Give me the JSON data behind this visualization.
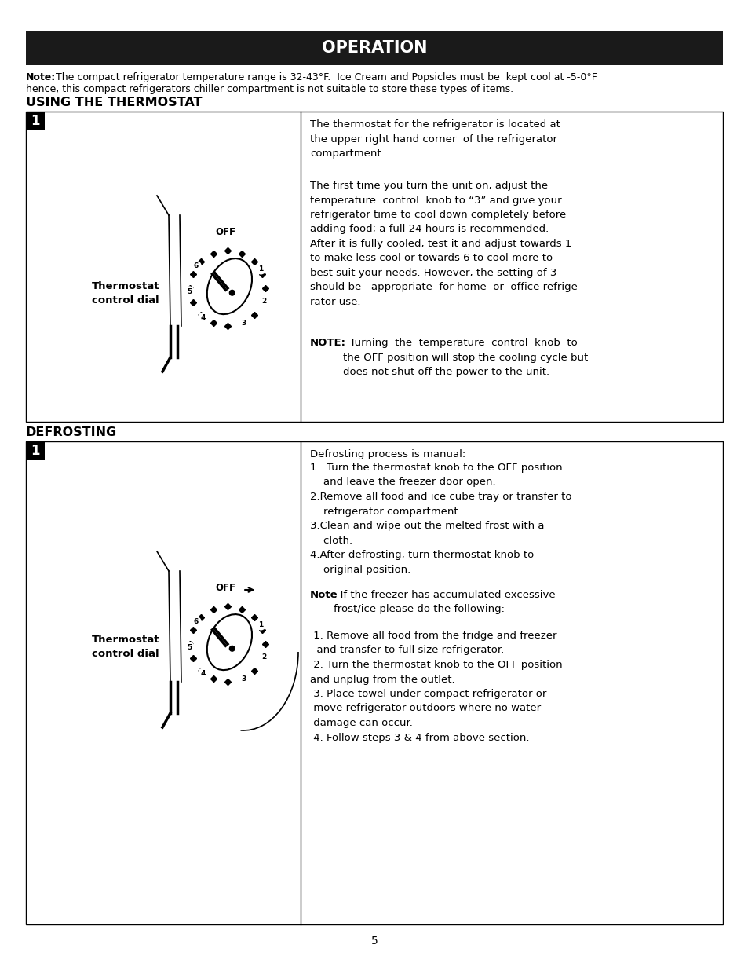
{
  "title": "OPERATION",
  "title_bg": "#1a1a1a",
  "title_color": "#ffffff",
  "page_bg": "#ffffff",
  "section1_header": "USING THE THERMOSTAT",
  "section2_header": "DEFROSTING",
  "thermostat_label_line1": "Thermostat",
  "thermostat_label_line2": "control dial",
  "page_number": "5",
  "note_bold": "Note:",
  "note_rest_line1": " The compact refrigerator temperature range is 32-43°F.  Ice Cream and Popsicles must be  kept cool at -5-0°F",
  "note_line2": "hence, this compact refrigerators chiller compartment is not suitable to store these types of items.",
  "text1_para1": "The thermostat for the refrigerator is located at\nthe upper right hand corner  of the refrigerator\ncompartment.",
  "text1_para2": "The first time you turn the unit on, adjust the\ntemperature  control  knob to “3” and give your\nrefrigerator time to cool down completely before\nadding food; a full 24 hours is recommended.\nAfter it is fully cooled, test it and adjust towards 1\nto make less cool or towards 6 to cool more to\nbest suit your needs. However, the setting of 3\nshould be   appropriate  for home  or  office refrige-\nrator use.",
  "text1_note_bold": "NOTE:",
  "text1_note_rest": "  Turning  the  temperature  control  knob  to\nthe OFF position will stop the cooling cycle but\ndoes not shut off the power to the unit.",
  "defrost_intro": "Defrosting process is manual:",
  "defrost_steps": "1.  Turn the thermostat knob to the OFF position\n    and leave the freezer door open.\n2.Remove all food and ice cube tray or transfer to\n    refrigerator compartment.\n3.Clean and wipe out the melted frost with a\n    cloth.\n4.After defrosting, turn thermostat knob to\n    original position.",
  "defrost_note_bold": "Note",
  "defrost_note_rest": ": If the freezer has accumulated excessive\nfrost/ice please do the following:",
  "defrost_extra": " 1. Remove all food from the fridge and freezer\n  and transfer to full size refrigerator.\n 2. Turn the thermostat knob to the OFF position\nand unplug from the outlet.\n 3. Place towel under compact refrigerator or\n move refrigerator outdoors where no water\n damage can occur.\n 4. Follow steps 3 & 4 from above section."
}
